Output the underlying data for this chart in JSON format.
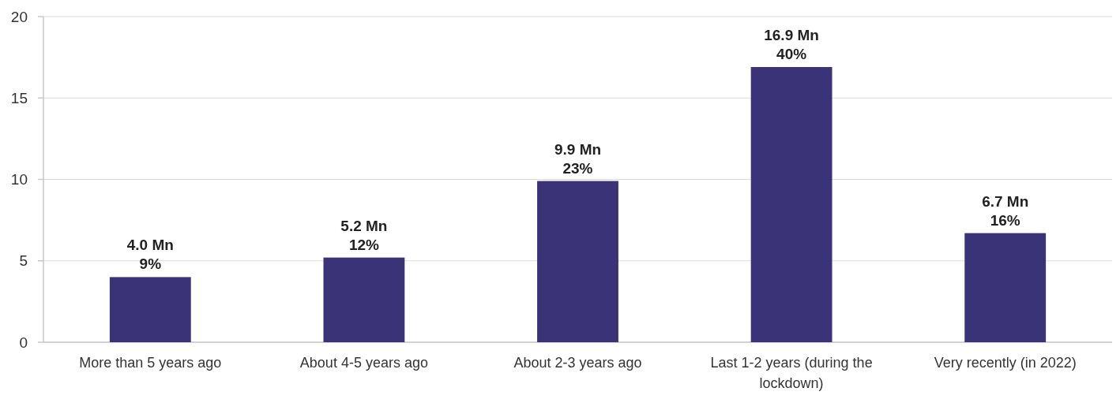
{
  "chart_data": {
    "type": "bar",
    "categories": [
      "More than 5 years ago",
      "About 4-5 years ago",
      "About 2-3 years ago",
      "Last 1-2 years (during the lockdown)",
      "Very recently (in 2022)"
    ],
    "values": [
      4.0,
      5.2,
      9.9,
      16.9,
      6.7
    ],
    "value_labels": [
      "4.0 Mn\n9%",
      "5.2 Mn\n12%",
      "9.9 Mn\n23%",
      "16.9 Mn\n40%",
      "6.7 Mn\n16%"
    ],
    "color": "#3a3378",
    "ylim": [
      0,
      20
    ],
    "yticks": [
      0,
      5,
      10,
      15,
      20
    ],
    "grid": "y"
  }
}
